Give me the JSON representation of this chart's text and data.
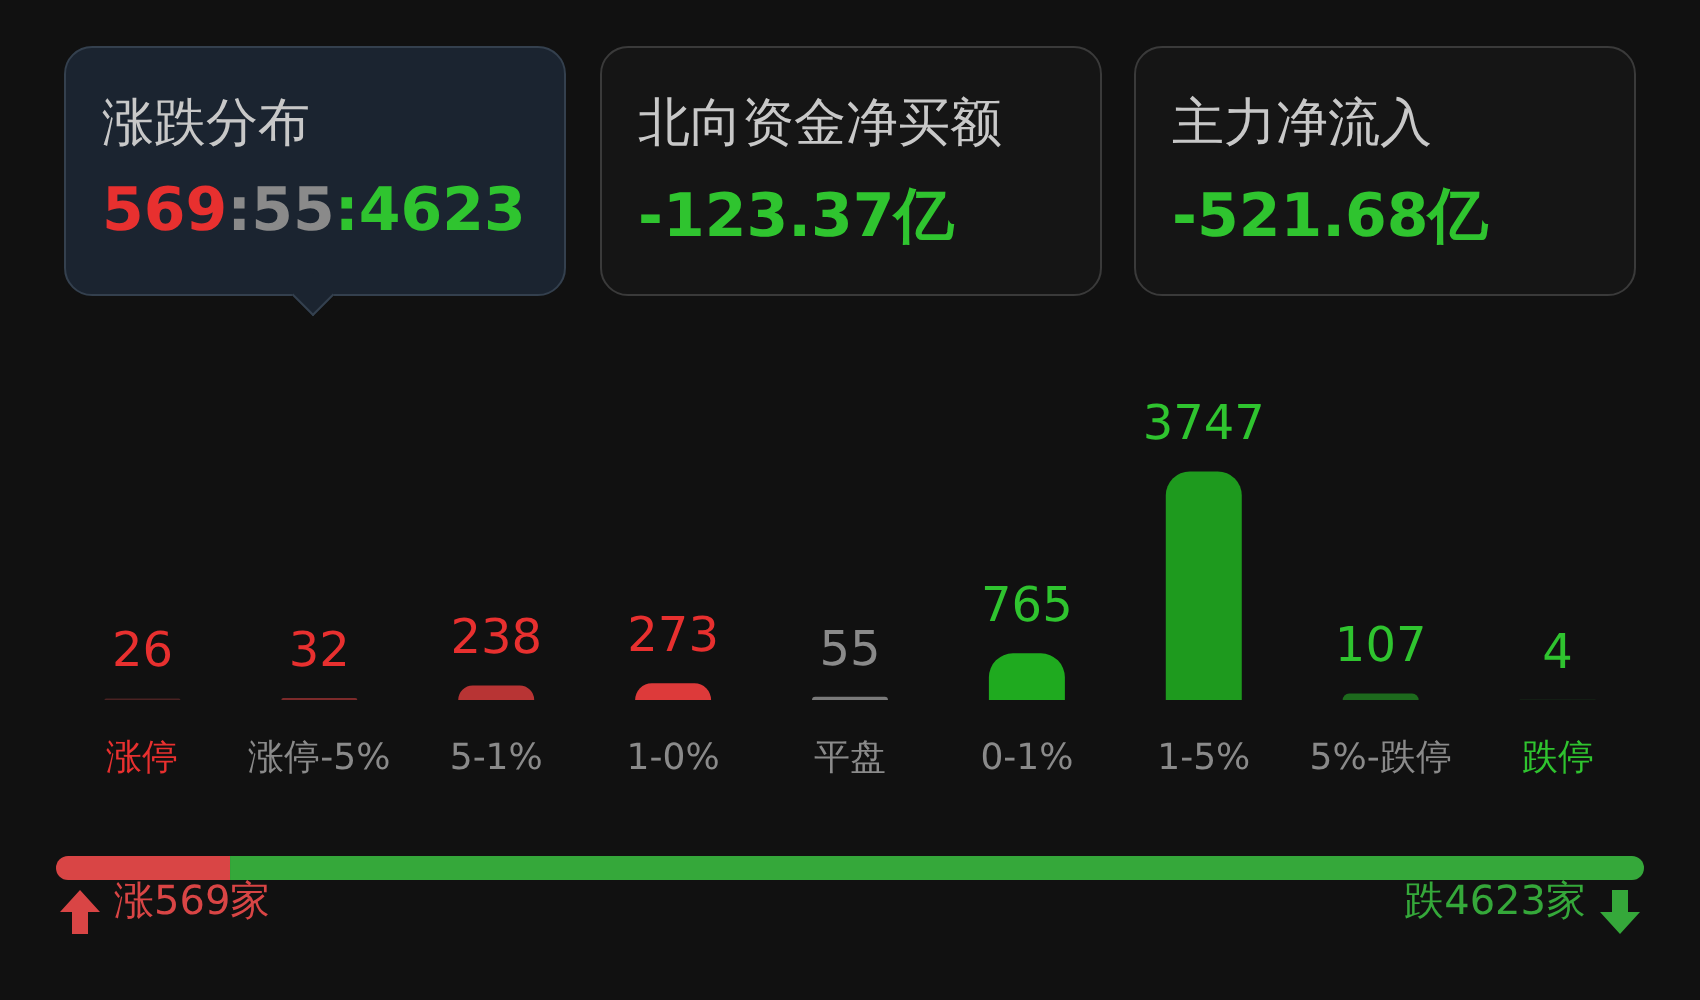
{
  "chart_data": [
    {
      "type": "other",
      "title": "涨跌分布",
      "annotations": [
        "569:55:4623"
      ],
      "colors": [
        "#e8302f",
        "#8a8a8a",
        "#2fc42f"
      ]
    },
    {
      "type": "other",
      "title": "北向资金净买额",
      "annotations": [
        "-123.37亿"
      ],
      "colors": [
        "#2fc42f"
      ]
    },
    {
      "type": "other",
      "title": "主力净流入",
      "annotations": [
        "-521.68亿"
      ],
      "colors": [
        "#2fc42f"
      ]
    },
    {
      "type": "bar",
      "data_labels": true,
      "categories": [
        "涨停",
        "涨停-5%",
        "5-1%",
        "1-0%",
        "平盘",
        "0-1%",
        "1-5%",
        "5%-跌停",
        "跌停"
      ],
      "values": [
        26,
        32,
        238,
        273,
        55,
        765,
        3747,
        107,
        4
      ],
      "colors": [
        "#4a2222",
        "#7c2a2a",
        "#b83434",
        "#dd3a3a",
        "#7a7a7a",
        "#1faa1f",
        "#1e9a1e",
        "#1d6a1d",
        "#1f4a22"
      ]
    },
    {
      "type": "bar",
      "orientation": "horizontal",
      "stacked": true,
      "categories": [
        null
      ],
      "series": [
        {
          "color": "#d94545",
          "values": [
            569
          ],
          "value_labels": [
            "涨569家"
          ]
        },
        {
          "color": "#35a83a",
          "values": [
            4623
          ],
          "value_labels": [
            "跌4623家"
          ]
        }
      ]
    }
  ]
}
